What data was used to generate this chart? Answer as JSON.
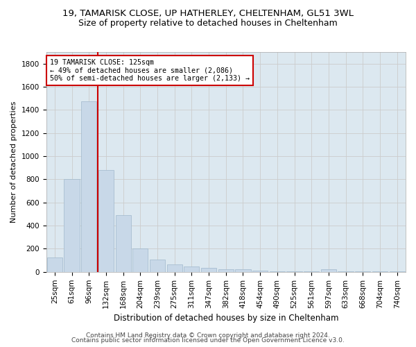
{
  "title_line1": "19, TAMARISK CLOSE, UP HATHERLEY, CHELTENHAM, GL51 3WL",
  "title_line2": "Size of property relative to detached houses in Cheltenham",
  "xlabel": "Distribution of detached houses by size in Cheltenham",
  "ylabel": "Number of detached properties",
  "footer_line1": "Contains HM Land Registry data © Crown copyright and database right 2024.",
  "footer_line2": "Contains public sector information licensed under the Open Government Licence v3.0.",
  "categories": [
    "25sqm",
    "61sqm",
    "96sqm",
    "132sqm",
    "168sqm",
    "204sqm",
    "239sqm",
    "275sqm",
    "311sqm",
    "347sqm",
    "382sqm",
    "418sqm",
    "454sqm",
    "490sqm",
    "525sqm",
    "561sqm",
    "597sqm",
    "633sqm",
    "668sqm",
    "704sqm",
    "740sqm"
  ],
  "values": [
    125,
    800,
    1475,
    880,
    490,
    205,
    105,
    65,
    45,
    35,
    25,
    20,
    10,
    5,
    5,
    5,
    20,
    5,
    5,
    5,
    5
  ],
  "bar_color": "#c8d8e8",
  "bar_edgecolor": "#a0b8cc",
  "vline_x_index": 2,
  "vline_color": "#cc0000",
  "annotation_text1": "19 TAMARISK CLOSE: 125sqm",
  "annotation_text2": "← 49% of detached houses are smaller (2,086)",
  "annotation_text3": "50% of semi-detached houses are larger (2,133) →",
  "annotation_box_color": "#cc0000",
  "ylim": [
    0,
    1900
  ],
  "yticks": [
    0,
    200,
    400,
    600,
    800,
    1000,
    1200,
    1400,
    1600,
    1800
  ],
  "grid_color": "#cccccc",
  "bg_color": "#dce8f0",
  "title_fontsize": 9.5,
  "subtitle_fontsize": 9,
  "axis_label_fontsize": 8.5,
  "tick_fontsize": 7.5,
  "ylabel_fontsize": 8
}
